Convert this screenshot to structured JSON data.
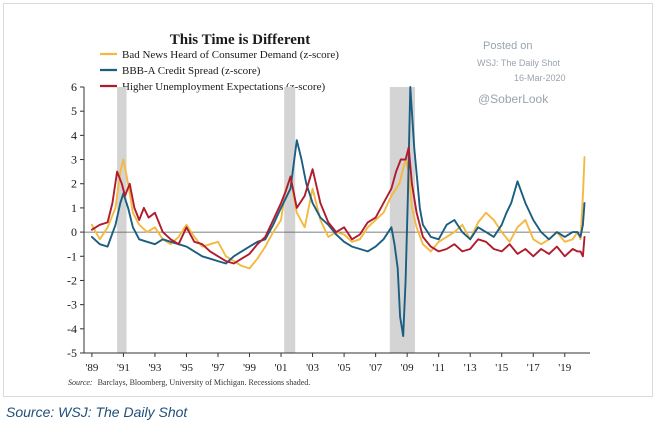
{
  "caption": "Source: WSJ: The Daily Shot",
  "watermark": {
    "line1": "Posted on",
    "line2": "WSJ: The Daily Shot",
    "line3": "16-Mar-2020",
    "handle": "@SoberLook"
  },
  "source_note": "Barclays, Bloomberg, University of Michigan. Recessions shaded.",
  "source_prefix": "Source:",
  "chart_data": {
    "type": "line",
    "title": "This Time is Different",
    "xlabel": "",
    "ylabel": "",
    "xlim": [
      1988.5,
      2020.6
    ],
    "ylim": [
      -5,
      6
    ],
    "yticks": [
      6,
      5,
      4,
      3,
      2,
      1,
      0,
      -1,
      -2,
      -3,
      -4,
      -5
    ],
    "xticks": [
      {
        "value": 1989,
        "label": "'89"
      },
      {
        "value": 1991,
        "label": "'91"
      },
      {
        "value": 1993,
        "label": "'93"
      },
      {
        "value": 1995,
        "label": "'95"
      },
      {
        "value": 1997,
        "label": "'97"
      },
      {
        "value": 1999,
        "label": "'99"
      },
      {
        "value": 2001,
        "label": "'01"
      },
      {
        "value": 2003,
        "label": "'03"
      },
      {
        "value": 2005,
        "label": "'05"
      },
      {
        "value": 2007,
        "label": "'07"
      },
      {
        "value": 2009,
        "label": "'09"
      },
      {
        "value": 2011,
        "label": "'11"
      },
      {
        "value": 2013,
        "label": "'13"
      },
      {
        "value": 2015,
        "label": "'15"
      },
      {
        "value": 2017,
        "label": "'17"
      },
      {
        "value": 2019,
        "label": "'19"
      }
    ],
    "grid": false,
    "legend_position": "top-left",
    "recessions": [
      [
        1990.6,
        1991.2
      ],
      [
        2001.2,
        2001.9
      ],
      [
        2007.9,
        2009.5
      ]
    ],
    "series": [
      {
        "name": "Bad News Heard of Consumer Demand (z-score)",
        "color": "#f4b942",
        "x": [
          1989,
          1989.5,
          1990,
          1990.5,
          1990.8,
          1991,
          1991.3,
          1991.6,
          1992,
          1992.5,
          1993,
          1993.5,
          1994,
          1994.5,
          1995,
          1995.5,
          1996,
          1996.5,
          1997,
          1997.5,
          1998,
          1998.5,
          1999,
          1999.5,
          2000,
          2000.5,
          2001,
          2001.3,
          2001.6,
          2002,
          2002.5,
          2003,
          2003.5,
          2004,
          2004.5,
          2005,
          2005.5,
          2006,
          2006.5,
          2007,
          2007.5,
          2008,
          2008.5,
          2008.9,
          2009.1,
          2009.3,
          2009.6,
          2010,
          2010.5,
          2011,
          2011.5,
          2012,
          2012.5,
          2013,
          2013.5,
          2014,
          2014.5,
          2015,
          2015.5,
          2016,
          2016.5,
          2017,
          2017.5,
          2018,
          2018.5,
          2019,
          2019.5,
          2019.8,
          2020.0,
          2020.15,
          2020.25
        ],
        "values": [
          0.3,
          -0.3,
          0.2,
          1.0,
          2.5,
          3.0,
          2.0,
          0.8,
          0.3,
          0.0,
          0.2,
          -0.3,
          -0.5,
          -0.2,
          0.3,
          -0.2,
          -0.6,
          -0.5,
          -0.4,
          -1.0,
          -1.2,
          -1.4,
          -1.5,
          -1.1,
          -0.6,
          0.0,
          0.5,
          1.8,
          2.2,
          0.8,
          0.2,
          1.8,
          0.5,
          -0.2,
          0.0,
          -0.1,
          -0.4,
          -0.3,
          0.2,
          0.5,
          0.8,
          1.5,
          2.0,
          3.0,
          2.5,
          1.0,
          0.2,
          -0.5,
          -0.8,
          -0.4,
          -0.2,
          0.0,
          0.3,
          -0.3,
          0.4,
          0.8,
          0.5,
          0.0,
          -0.4,
          0.2,
          0.5,
          -0.3,
          -0.5,
          -0.3,
          0.0,
          -0.4,
          -0.3,
          0.0,
          -0.3,
          1.5,
          3.1
        ]
      },
      {
        "name": "BBB-A Credit Spread (z-score)",
        "color": "#1b5e82",
        "x": [
          1989,
          1989.5,
          1990,
          1990.5,
          1990.8,
          1991,
          1991.3,
          1991.6,
          1992,
          1992.5,
          1993,
          1993.5,
          1994,
          1994.5,
          1995,
          1995.5,
          1996,
          1996.5,
          1997,
          1997.5,
          1998,
          1998.5,
          1999,
          1999.5,
          2000,
          2000.5,
          2001,
          2001.3,
          2001.6,
          2002,
          2002.3,
          2002.6,
          2003,
          2003.5,
          2004,
          2004.5,
          2005,
          2005.5,
          2006,
          2006.5,
          2007,
          2007.5,
          2008,
          2008.2,
          2008.4,
          2008.55,
          2008.75,
          2008.9,
          2009.05,
          2009.2,
          2009.45,
          2009.8,
          2010,
          2010.5,
          2011,
          2011.5,
          2012,
          2012.5,
          2013,
          2013.5,
          2014,
          2014.5,
          2015,
          2015.3,
          2015.6,
          2016,
          2016.5,
          2017,
          2017.5,
          2018,
          2018.5,
          2019,
          2019.5,
          2019.8,
          2020.0,
          2020.15,
          2020.25
        ],
        "values": [
          -0.2,
          -0.5,
          -0.6,
          0.3,
          1.2,
          1.6,
          1.0,
          0.2,
          -0.3,
          -0.4,
          -0.5,
          -0.3,
          -0.4,
          -0.5,
          -0.6,
          -0.8,
          -1.0,
          -1.1,
          -1.2,
          -1.3,
          -1.0,
          -0.8,
          -0.6,
          -0.4,
          -0.3,
          0.3,
          1.0,
          1.4,
          1.8,
          3.8,
          3.0,
          2.0,
          1.2,
          0.6,
          0.3,
          -0.1,
          -0.4,
          -0.6,
          -0.7,
          -0.8,
          -0.6,
          -0.3,
          0.2,
          -0.5,
          -1.5,
          -3.5,
          -4.3,
          -2.0,
          1.5,
          6.0,
          3.5,
          1.0,
          0.3,
          -0.2,
          -0.3,
          0.3,
          0.5,
          0.0,
          -0.3,
          0.2,
          0.0,
          -0.2,
          0.3,
          0.8,
          1.2,
          2.1,
          1.2,
          0.5,
          0.0,
          -0.3,
          0.0,
          -0.2,
          0.0,
          0.0,
          -0.2,
          0.3,
          1.2
        ]
      },
      {
        "name": "Higher Unemployment Expectations (z-score)",
        "color": "#b01c2e",
        "x": [
          1989,
          1989.5,
          1990,
          1990.3,
          1990.6,
          1990.9,
          1991.1,
          1991.4,
          1991.7,
          1992,
          1992.3,
          1992.6,
          1993,
          1993.5,
          1994,
          1994.5,
          1995,
          1995.5,
          1996,
          1996.5,
          1997,
          1997.5,
          1998,
          1998.5,
          1999,
          1999.5,
          2000,
          2000.5,
          2001,
          2001.3,
          2001.6,
          2002,
          2002.5,
          2003,
          2003.5,
          2004,
          2004.5,
          2005,
          2005.5,
          2006,
          2006.5,
          2007,
          2007.5,
          2008,
          2008.3,
          2008.6,
          2008.9,
          2009.1,
          2009.3,
          2009.6,
          2010,
          2010.5,
          2011,
          2011.5,
          2012,
          2012.5,
          2013,
          2013.5,
          2014,
          2014.5,
          2015,
          2015.5,
          2016,
          2016.5,
          2017,
          2017.5,
          2018,
          2018.5,
          2019,
          2019.5,
          2019.8,
          2020.0,
          2020.15,
          2020.25
        ],
        "values": [
          0.1,
          0.3,
          0.4,
          1.2,
          2.5,
          2.0,
          1.5,
          2.0,
          1.0,
          0.5,
          1.0,
          0.6,
          0.8,
          0.0,
          -0.3,
          -0.5,
          0.2,
          -0.4,
          -0.5,
          -0.8,
          -1.0,
          -1.2,
          -1.3,
          -1.1,
          -0.9,
          -0.5,
          -0.2,
          0.5,
          1.2,
          1.7,
          2.3,
          1.0,
          1.5,
          2.6,
          1.2,
          0.4,
          0.0,
          0.2,
          -0.3,
          -0.1,
          0.4,
          0.6,
          1.2,
          1.8,
          2.5,
          3.0,
          3.0,
          3.5,
          2.0,
          0.8,
          -0.2,
          -0.6,
          -0.8,
          -0.7,
          -0.5,
          -0.8,
          -0.7,
          -0.3,
          -0.4,
          -0.7,
          -0.8,
          -0.5,
          -0.9,
          -0.7,
          -1.0,
          -0.7,
          -0.9,
          -0.6,
          -1.0,
          -0.7,
          -0.8,
          -0.8,
          -1.0,
          -0.2
        ]
      }
    ]
  }
}
